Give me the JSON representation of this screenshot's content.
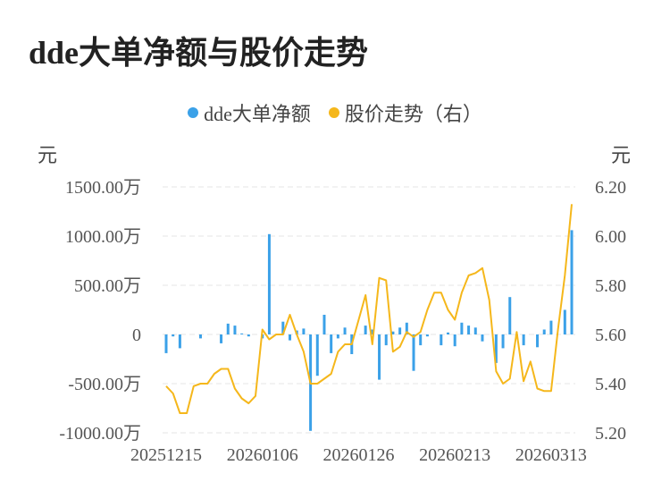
{
  "title": "dde大单净额与股价走势",
  "legend": [
    {
      "label": "dde大单净额",
      "color": "#3ba1e8"
    },
    {
      "label": "股价走势（右）",
      "color": "#f5b71b"
    }
  ],
  "units": {
    "left": "元",
    "right": "元"
  },
  "chart_data": {
    "type": "bar+line",
    "title": "dde大单净额与股价走势",
    "left_axis": {
      "min": -1000,
      "max": 1500,
      "tick_values": [
        1500,
        1000,
        500,
        0,
        -500,
        -1000
      ],
      "tick_labels": [
        "1500.00万",
        "1000.00万",
        "500.00万",
        "0",
        "-500.00万",
        "-1000.00万"
      ]
    },
    "right_axis": {
      "min": 5.2,
      "max": 6.2,
      "tick_values": [
        6.2,
        6.0,
        5.8,
        5.6,
        5.4,
        5.2
      ],
      "tick_labels": [
        "6.20",
        "6.00",
        "5.80",
        "5.60",
        "5.40",
        "5.20"
      ]
    },
    "x_tick_labels": [
      "20251215",
      "20260106",
      "20260126",
      "20260213",
      "20260313"
    ],
    "x_tick_positions": [
      0,
      14,
      28,
      42,
      56
    ],
    "grid": "horizontal dashed",
    "series": [
      {
        "name": "dde大单净额",
        "kind": "bar",
        "axis": "left",
        "values": [
          -190,
          -20,
          -140,
          0,
          0,
          -40,
          0,
          0,
          -90,
          110,
          90,
          10,
          -20,
          0,
          -40,
          1020,
          0,
          130,
          -60,
          40,
          60,
          -980,
          -420,
          200,
          -190,
          -40,
          70,
          -200,
          0,
          90,
          50,
          -460,
          -110,
          30,
          70,
          120,
          -370,
          -110,
          -20,
          0,
          -110,
          20,
          -120,
          120,
          90,
          70,
          -70,
          0,
          -290,
          -140,
          380,
          -20,
          -110,
          0,
          -130,
          50,
          140,
          0,
          250,
          1060
        ]
      },
      {
        "name": "股价走势（右）",
        "kind": "line",
        "axis": "right",
        "values": [
          5.39,
          5.36,
          5.28,
          5.28,
          5.39,
          5.4,
          5.4,
          5.44,
          5.46,
          5.46,
          5.38,
          5.34,
          5.32,
          5.35,
          5.62,
          5.58,
          5.6,
          5.6,
          5.68,
          5.6,
          5.53,
          5.4,
          5.4,
          5.42,
          5.44,
          5.53,
          5.56,
          5.56,
          5.66,
          5.76,
          5.56,
          5.83,
          5.82,
          5.53,
          5.55,
          5.61,
          5.59,
          5.61,
          5.7,
          5.77,
          5.77,
          5.7,
          5.66,
          5.77,
          5.84,
          5.85,
          5.87,
          5.74,
          5.45,
          5.4,
          5.42,
          5.61,
          5.41,
          5.49,
          5.38,
          5.37,
          5.37,
          5.62,
          5.84,
          6.13
        ]
      }
    ]
  }
}
